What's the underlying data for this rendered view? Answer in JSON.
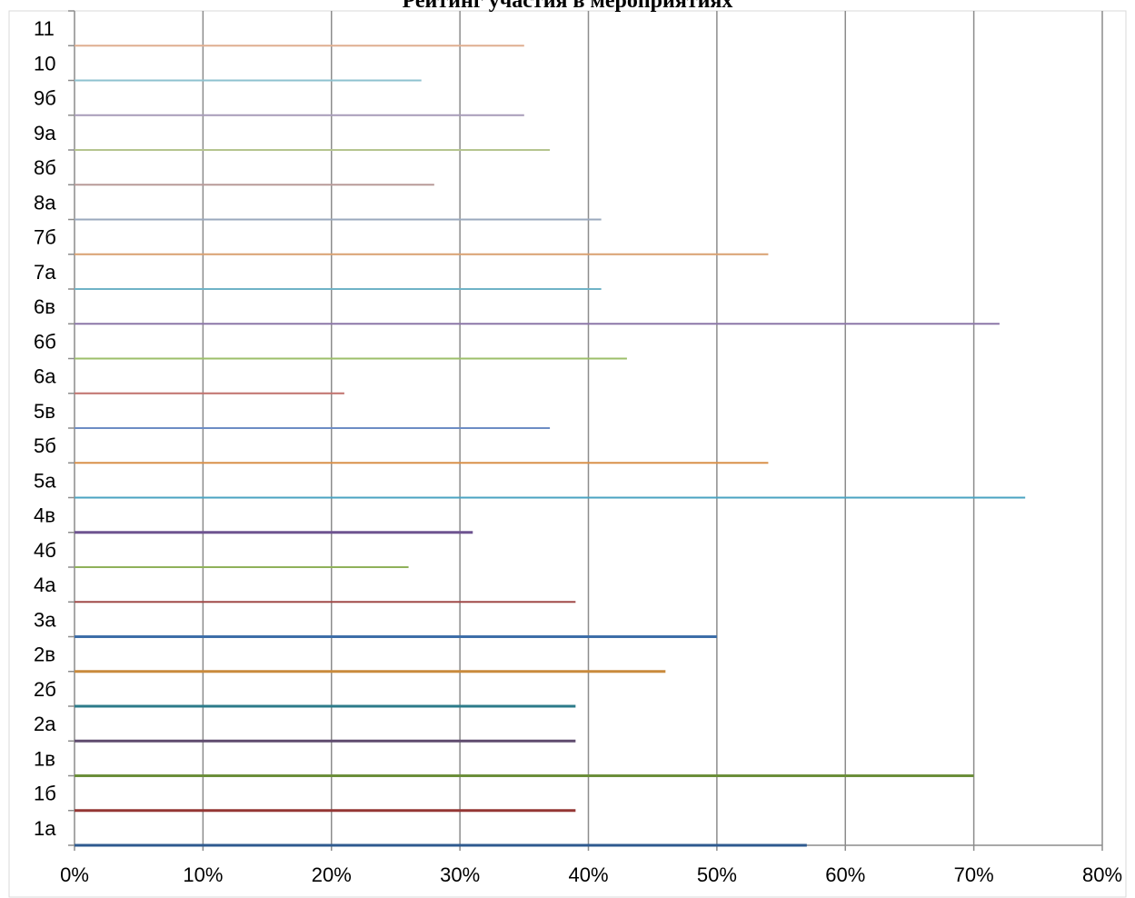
{
  "chart_data": {
    "type": "bar",
    "orientation": "horizontal",
    "title": "Рейтинг участия в мероприятиях",
    "xlabel": "",
    "ylabel": "",
    "xlim": [
      0,
      0.8
    ],
    "x_ticks": [
      "0%",
      "10%",
      "20%",
      "30%",
      "40%",
      "50%",
      "60%",
      "70%",
      "80%"
    ],
    "grid": "vertical",
    "legend": "none",
    "categories": [
      "1а",
      "1б",
      "1в",
      "2а",
      "2б",
      "2в",
      "3а",
      "4а",
      "4б",
      "4в",
      "5а",
      "5б",
      "5в",
      "6а",
      "6б",
      "6в",
      "7а",
      "7б",
      "8а",
      "8б",
      "9а",
      "9б",
      "10",
      "11"
    ],
    "values": [
      0.57,
      0.39,
      0.7,
      0.39,
      0.39,
      0.46,
      0.5,
      0.39,
      0.26,
      0.31,
      0.74,
      0.54,
      0.37,
      0.21,
      0.43,
      0.72,
      0.41,
      0.54,
      0.41,
      0.28,
      0.37,
      0.35,
      0.27,
      0.35
    ],
    "colors": [
      "#2e5a8f",
      "#943634",
      "#6b8e3a",
      "#5f4b6e",
      "#2b7b8a",
      "#c98a3c",
      "#3d6ea8",
      "#a04a48",
      "#8fb15a",
      "#6e5390",
      "#4aa3c2",
      "#d9904a",
      "#6d8cc4",
      "#c0706c",
      "#9cbf6a",
      "#8c77a8",
      "#6fb3c7",
      "#d9a070",
      "#9aa8bd",
      "#b89a98",
      "#b5c48f",
      "#a79bb8",
      "#8ec2cf",
      "#dfae90"
    ]
  }
}
